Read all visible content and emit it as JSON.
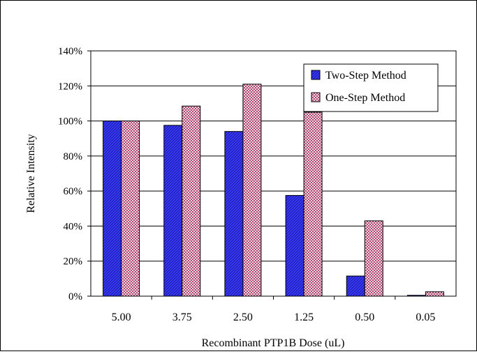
{
  "chart_data": {
    "type": "bar",
    "title": "",
    "xlabel": "Recombinant PTP1B Dose (uL)",
    "ylabel": "Relative Intensity",
    "categories": [
      "5.00",
      "3.75",
      "2.50",
      "1.25",
      "0.50",
      "0.05"
    ],
    "yticks": [
      "0%",
      "20%",
      "40%",
      "60%",
      "80%",
      "100%",
      "120%",
      "140%"
    ],
    "ylim": [
      0,
      140
    ],
    "grid": true,
    "legend_position": "top-right",
    "series": [
      {
        "name": "Two-Step Method",
        "values": [
          100,
          97.5,
          94,
          57.5,
          11.5,
          0.5
        ],
        "color": "#3a3aff",
        "pattern": "diagonal-hatch"
      },
      {
        "name": "One-Step Method",
        "values": [
          100,
          108.5,
          121,
          105,
          43,
          2.5
        ],
        "color": "#d9a3b8",
        "pattern": "checker"
      }
    ]
  }
}
